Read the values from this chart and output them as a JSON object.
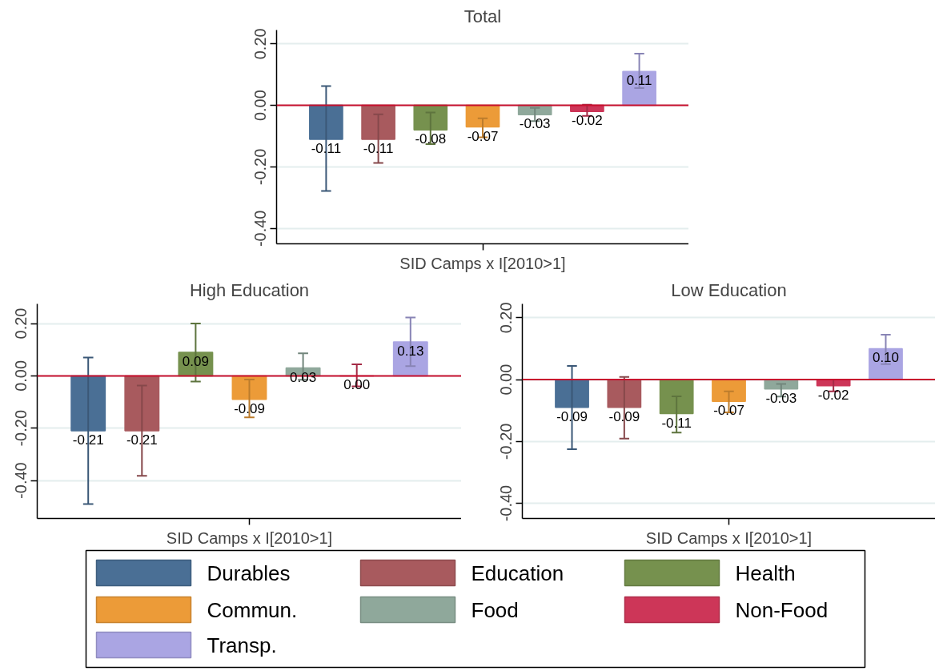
{
  "chart_data": [
    {
      "type": "bar",
      "title": "Total",
      "xlabel": "SID Camps x I[2010>1]",
      "categories": [
        null
      ],
      "ylim": [
        -0.45,
        0.245
      ],
      "yticks": [
        {
          "value": -0.4,
          "label": "-0.40"
        },
        {
          "value": -0.2,
          "label": "-0.20"
        },
        {
          "value": 0,
          "label": "0.00"
        },
        {
          "value": 0.2,
          "label": "0.20"
        }
      ],
      "grid": "y",
      "legend": "bottom",
      "ref_lines": [
        {
          "axis": "y",
          "value": 0,
          "color": "#c8102e"
        }
      ],
      "series": [
        {
          "name": "Durables",
          "color": "#4a6f95",
          "values": [
            -0.11
          ],
          "value_labels": [
            "-0.11"
          ],
          "errors": [
            [
              -0.278,
              0.063
            ]
          ]
        },
        {
          "name": "Education",
          "color": "#a85a5e",
          "values": [
            -0.11
          ],
          "value_labels": [
            "-0.11"
          ],
          "errors": [
            [
              -0.187,
              -0.029
            ]
          ]
        },
        {
          "name": "Health",
          "color": "#76914e",
          "values": [
            -0.08
          ],
          "value_labels": [
            "-0.08"
          ],
          "errors": [
            [
              -0.126,
              -0.023
            ]
          ]
        },
        {
          "name": "Commun.",
          "color": "#ec9b38",
          "values": [
            -0.07
          ],
          "value_labels": [
            "-0.07"
          ],
          "errors": [
            [
              -0.104,
              -0.042
            ]
          ]
        },
        {
          "name": "Food",
          "color": "#8fa89b",
          "values": [
            -0.03
          ],
          "value_labels": [
            "-0.03"
          ],
          "errors": [
            [
              -0.051,
              -0.008
            ]
          ]
        },
        {
          "name": "Non-Food",
          "color": "#cd3658",
          "values": [
            -0.02
          ],
          "value_labels": [
            "-0.02"
          ],
          "errors": [
            [
              -0.034,
              0.002
            ]
          ]
        },
        {
          "name": "Transp.",
          "color": "#aaa5e3",
          "values": [
            0.11
          ],
          "value_labels": [
            "0.11"
          ],
          "errors": [
            [
              0.056,
              0.168
            ]
          ]
        }
      ]
    },
    {
      "type": "bar",
      "title": "High Education",
      "xlabel": "SID Camps x I[2010>1]",
      "categories": [
        null
      ],
      "ylim": [
        -0.545,
        0.275
      ],
      "yticks": [
        {
          "value": -0.4,
          "label": "-0.40"
        },
        {
          "value": -0.2,
          "label": "-0.20"
        },
        {
          "value": 0,
          "label": "0.00"
        },
        {
          "value": 0.2,
          "label": "0.20"
        }
      ],
      "grid": "y",
      "ref_lines": [
        {
          "axis": "y",
          "value": 0,
          "color": "#c8102e"
        }
      ],
      "series": [
        {
          "color": "#4a6f95",
          "values": [
            -0.21
          ],
          "value_labels": [
            "-0.21"
          ],
          "errors": [
            [
              -0.49,
              0.07
            ]
          ]
        },
        {
          "color": "#a85a5e",
          "values": [
            -0.21
          ],
          "value_labels": [
            "-0.21"
          ],
          "errors": [
            [
              -0.382,
              -0.037
            ]
          ]
        },
        {
          "color": "#76914e",
          "values": [
            0.09
          ],
          "value_labels": [
            "0.09"
          ],
          "errors": [
            [
              -0.022,
              0.2
            ]
          ]
        },
        {
          "color": "#ec9b38",
          "values": [
            -0.09
          ],
          "value_labels": [
            "-0.09"
          ],
          "errors": [
            [
              -0.159,
              -0.014
            ]
          ]
        },
        {
          "color": "#8fa89b",
          "values": [
            0.03
          ],
          "value_labels": [
            "0.03"
          ],
          "errors": [
            [
              -0.015,
              0.086
            ]
          ]
        },
        {
          "color": "#cd3658",
          "values": [
            0.0
          ],
          "value_labels": [
            "0.00"
          ],
          "errors": [
            [
              -0.04,
              0.044
            ]
          ]
        },
        {
          "color": "#aaa5e3",
          "values": [
            0.13
          ],
          "value_labels": [
            "0.13"
          ],
          "errors": [
            [
              0.037,
              0.223
            ]
          ]
        }
      ]
    },
    {
      "type": "bar",
      "title": "Low Education",
      "xlabel": "SID Camps x I[2010>1]",
      "categories": [
        null
      ],
      "ylim": [
        -0.449,
        0.245
      ],
      "yticks": [
        {
          "value": -0.4,
          "label": "-0.40"
        },
        {
          "value": -0.2,
          "label": "-0.20"
        },
        {
          "value": 0,
          "label": "0.00"
        },
        {
          "value": 0.2,
          "label": "0.20"
        }
      ],
      "grid": "y",
      "ref_lines": [
        {
          "axis": "y",
          "value": 0,
          "color": "#c8102e"
        }
      ],
      "series": [
        {
          "color": "#4a6f95",
          "values": [
            -0.09
          ],
          "value_labels": [
            "-0.09"
          ],
          "errors": [
            [
              -0.225,
              0.044
            ]
          ]
        },
        {
          "color": "#a85a5e",
          "values": [
            -0.09
          ],
          "value_labels": [
            "-0.09"
          ],
          "errors": [
            [
              -0.191,
              0.009
            ]
          ]
        },
        {
          "color": "#76914e",
          "values": [
            -0.11
          ],
          "value_labels": [
            "-0.11"
          ],
          "errors": [
            [
              -0.171,
              -0.054
            ]
          ]
        },
        {
          "color": "#ec9b38",
          "values": [
            -0.07
          ],
          "value_labels": [
            "-0.07"
          ],
          "errors": [
            [
              -0.106,
              -0.038
            ]
          ]
        },
        {
          "color": "#8fa89b",
          "values": [
            -0.03
          ],
          "value_labels": [
            "-0.03"
          ],
          "errors": [
            [
              -0.055,
              -0.014
            ]
          ]
        },
        {
          "color": "#cd3658",
          "values": [
            -0.02
          ],
          "value_labels": [
            "-0.02"
          ],
          "errors": [
            [
              -0.038,
              0.0
            ]
          ]
        },
        {
          "color": "#aaa5e3",
          "values": [
            0.1
          ],
          "value_labels": [
            "0.10"
          ],
          "errors": [
            [
              0.05,
              0.145
            ]
          ]
        }
      ]
    }
  ]
}
